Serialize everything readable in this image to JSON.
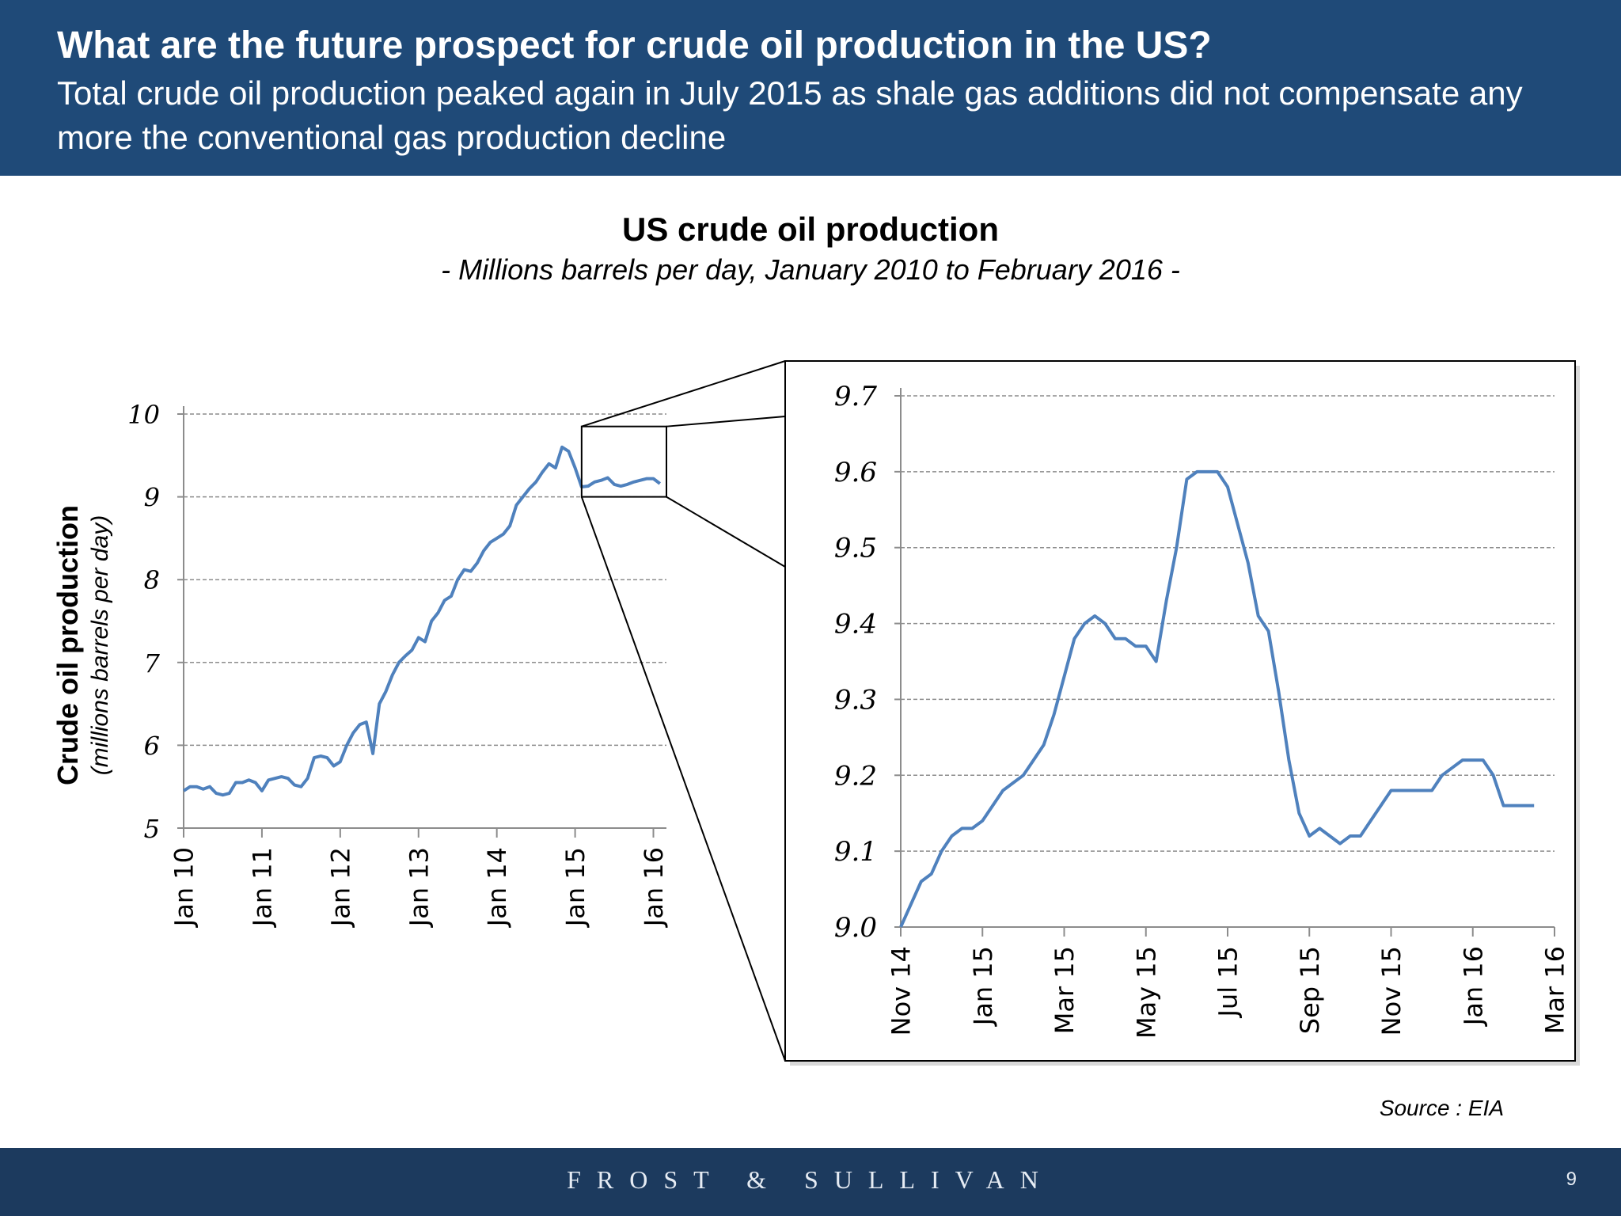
{
  "header": {
    "title": "What are the future prospect for crude oil production in the US?",
    "subtitle": "Total crude oil production peaked again in July 2015 as shale gas additions did not compensate any more the conventional gas production decline"
  },
  "chart_heading": {
    "title": "US crude oil production",
    "subtitle": "- Millions barrels per day, January 2010 to February 2016 -"
  },
  "colors": {
    "header_bg": "#1f4a78",
    "footer_bg": "#1c3a5e",
    "series": "#4f81bd"
  },
  "chart_data": [
    {
      "type": "line",
      "ylabel": "Crude oil production",
      "ylabel_sub": "(millions barrels per day)",
      "ylim": [
        5,
        10
      ],
      "yticks": [
        "5",
        "6",
        "7",
        "8",
        "9",
        "10"
      ],
      "xlim": [
        0,
        74
      ],
      "xticks": [
        {
          "label": "Jan 10",
          "x": 0
        },
        {
          "label": "Jan 11",
          "x": 12
        },
        {
          "label": "Jan 12",
          "x": 24
        },
        {
          "label": "Jan 13",
          "x": 36
        },
        {
          "label": "Jan 14",
          "x": 48
        },
        {
          "label": "Jan 15",
          "x": 60
        },
        {
          "label": "Jan 16",
          "x": 72
        }
      ],
      "grid": true,
      "series": [
        {
          "x": [
            0,
            1,
            2,
            3,
            4,
            5,
            6,
            7,
            8,
            9,
            10,
            11,
            12,
            13,
            14,
            15,
            16,
            17,
            18,
            19,
            20,
            21,
            22,
            23,
            24,
            25,
            26,
            27,
            28,
            29,
            30,
            31,
            32,
            33,
            34,
            35,
            36,
            37,
            38,
            39,
            40,
            41,
            42,
            43,
            44,
            45,
            46,
            47,
            48,
            49,
            50,
            51,
            52,
            53,
            54,
            55,
            56,
            57,
            58,
            59,
            60,
            61,
            62,
            63,
            64,
            65,
            66,
            67,
            68,
            69,
            70,
            71,
            72,
            73
          ],
          "values": [
            5.45,
            5.5,
            5.5,
            5.47,
            5.5,
            5.42,
            5.4,
            5.42,
            5.55,
            5.55,
            5.58,
            5.55,
            5.45,
            5.58,
            5.6,
            5.62,
            5.6,
            5.52,
            5.5,
            5.6,
            5.85,
            5.87,
            5.85,
            5.75,
            5.8,
            6.0,
            6.15,
            6.25,
            6.28,
            5.9,
            6.5,
            6.65,
            6.85,
            7.0,
            7.08,
            7.15,
            7.3,
            7.25,
            7.5,
            7.6,
            7.75,
            7.8,
            8.0,
            8.12,
            8.1,
            8.2,
            8.35,
            8.45,
            8.5,
            8.55,
            8.65,
            8.9,
            9.0,
            9.1,
            9.18,
            9.3,
            9.4,
            9.35,
            9.6,
            9.55,
            9.35,
            9.12,
            9.13,
            9.18,
            9.2,
            9.23,
            9.15,
            9.13,
            9.15,
            9.18,
            9.2,
            9.22,
            9.22,
            9.16
          ]
        }
      ],
      "zoom_box": {
        "x": [
          61,
          74
        ],
        "y": [
          9.0,
          9.85
        ]
      }
    },
    {
      "type": "line",
      "ylim": [
        9.0,
        9.7
      ],
      "yticks": [
        "9.0",
        "9.1",
        "9.2",
        "9.3",
        "9.4",
        "9.5",
        "9.6",
        "9.7"
      ],
      "xlim": [
        0,
        16
      ],
      "xticks": [
        {
          "label": "Nov 14",
          "x": 0
        },
        {
          "label": "Jan 15",
          "x": 2
        },
        {
          "label": "Mar 15",
          "x": 4
        },
        {
          "label": "May 15",
          "x": 6
        },
        {
          "label": "Jul 15",
          "x": 8
        },
        {
          "label": "Sep 15",
          "x": 10
        },
        {
          "label": "Nov 15",
          "x": 12
        },
        {
          "label": "Jan 16",
          "x": 14
        },
        {
          "label": "Mar 16",
          "x": 16
        }
      ],
      "grid": true,
      "series": [
        {
          "x": [
            0,
            0.25,
            0.5,
            0.75,
            1,
            1.25,
            1.5,
            1.75,
            2,
            2.25,
            2.5,
            2.75,
            3,
            3.25,
            3.5,
            3.75,
            4,
            4.25,
            4.5,
            4.75,
            5,
            5.25,
            5.5,
            5.75,
            6,
            6.25,
            6.5,
            6.75,
            7,
            7.25,
            7.5,
            7.75,
            8,
            8.25,
            8.5,
            8.75,
            9,
            9.25,
            9.5,
            9.75,
            10,
            10.25,
            10.5,
            10.75,
            11,
            11.25,
            11.5,
            11.75,
            12,
            12.25,
            12.5,
            12.75,
            13,
            13.25,
            13.5,
            13.75,
            14,
            14.25,
            14.5,
            14.75,
            15,
            15.25,
            15.5
          ],
          "values": [
            9.0,
            9.03,
            9.06,
            9.07,
            9.1,
            9.12,
            9.13,
            9.13,
            9.14,
            9.16,
            9.18,
            9.19,
            9.2,
            9.22,
            9.24,
            9.28,
            9.33,
            9.38,
            9.4,
            9.41,
            9.4,
            9.38,
            9.38,
            9.37,
            9.37,
            9.35,
            9.43,
            9.5,
            9.59,
            9.6,
            9.6,
            9.6,
            9.58,
            9.53,
            9.48,
            9.41,
            9.39,
            9.31,
            9.22,
            9.15,
            9.12,
            9.13,
            9.12,
            9.11,
            9.12,
            9.12,
            9.14,
            9.16,
            9.18,
            9.18,
            9.18,
            9.18,
            9.18,
            9.2,
            9.21,
            9.22,
            9.22,
            9.22,
            9.2,
            9.16,
            9.16,
            9.16,
            9.16
          ]
        }
      ]
    }
  ],
  "source": "Source : EIA",
  "footer": {
    "brand": "FROST & SULLIVAN",
    "page_number": "9"
  }
}
